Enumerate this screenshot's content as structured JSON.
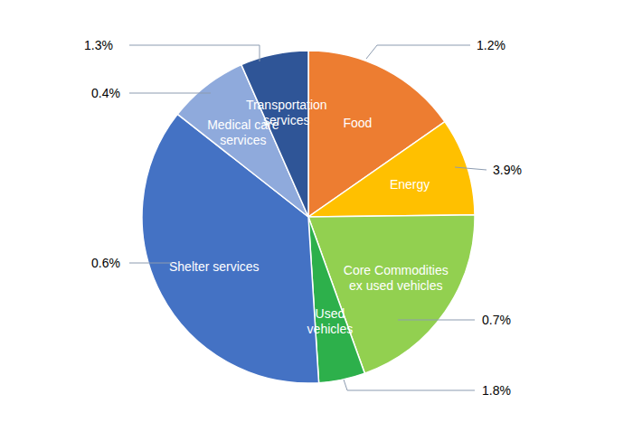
{
  "chart_data": {
    "type": "pie",
    "categories": [
      "Food",
      "Energy",
      "Core Commodities ex used vehicles",
      "Used vehicles",
      "Shelter services",
      "Medical care services",
      "Transportation services"
    ],
    "values": [
      15.3,
      9.5,
      19.7,
      4.5,
      36.6,
      7.8,
      6.6
    ],
    "colors": [
      "#ed7d31",
      "#ffc000",
      "#92d050",
      "#2db04b",
      "#4472c4",
      "#8faadc",
      "#2f5597"
    ],
    "annotations": [
      "1.2%",
      "3.9%",
      "0.7%",
      "1.8%",
      "0.6%",
      "0.4%",
      "1.3%"
    ]
  }
}
